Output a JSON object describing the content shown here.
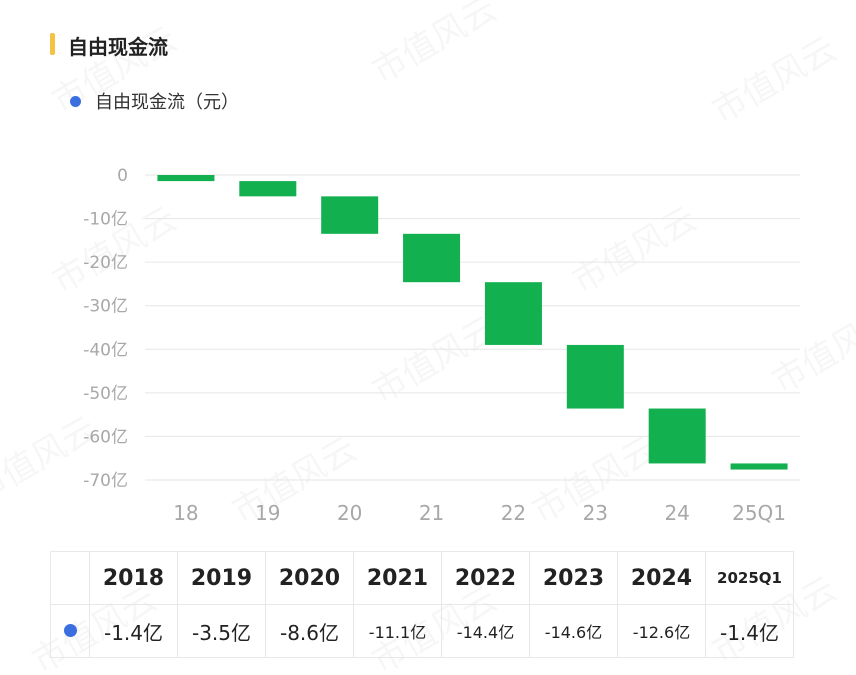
{
  "header": {
    "title": "自由现金流",
    "accent_color": "#f5c242"
  },
  "legend": {
    "label": "自由现金流（元）",
    "color": "#3b6fe0"
  },
  "chart_data": {
    "type": "bar",
    "subtype": "waterfall",
    "categories": [
      "18",
      "19",
      "20",
      "21",
      "22",
      "23",
      "24",
      "25Q1"
    ],
    "series": [
      {
        "name": "自由现金流（元）",
        "color": "#12b04f",
        "values": [
          -1.4,
          -3.5,
          -8.6,
          -11.1,
          -14.4,
          -14.6,
          -12.6,
          -1.4
        ]
      }
    ],
    "y_ticks": [
      "0",
      "-10亿",
      "-20亿",
      "-30亿",
      "-40亿",
      "-50亿",
      "-60亿",
      "-70亿"
    ],
    "ylim": [
      -70,
      0
    ],
    "grid": true
  },
  "table": {
    "years": [
      "2018",
      "2019",
      "2020",
      "2021",
      "2022",
      "2023",
      "2024",
      "2025Q1"
    ],
    "values": [
      "-1.4亿",
      "-3.5亿",
      "-8.6亿",
      "-11.1亿",
      "-14.4亿",
      "-14.6亿",
      "-12.6亿",
      "-1.4亿"
    ]
  },
  "watermark": "市值风云"
}
